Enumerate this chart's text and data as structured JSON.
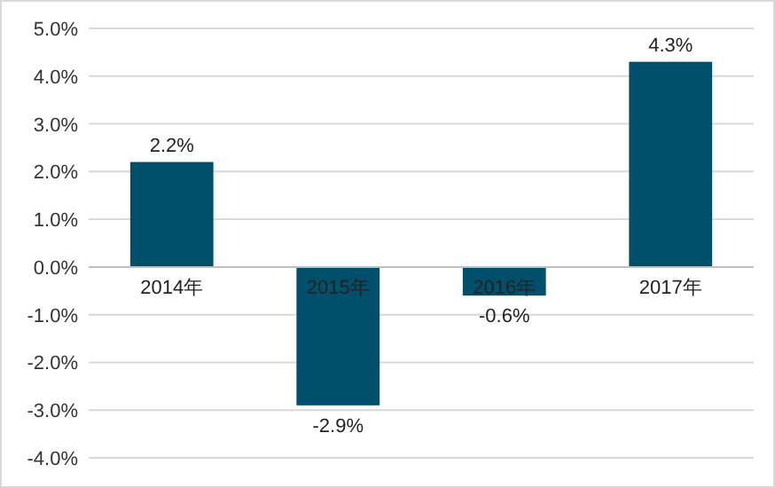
{
  "chart_data": {
    "type": "bar",
    "categories": [
      "2014年",
      "2015年",
      "2016年",
      "2017年"
    ],
    "values": [
      2.2,
      -2.9,
      -0.6,
      4.3
    ],
    "value_labels": [
      "2.2%",
      "-2.9%",
      "-0.6%",
      "4.3%"
    ],
    "color": "#004f6b",
    "ylim": [
      -4,
      5
    ],
    "yticks": [
      {
        "value": -4,
        "label": "-4.0%"
      },
      {
        "value": -3,
        "label": "-3.0%"
      },
      {
        "value": -2,
        "label": "-2.0%"
      },
      {
        "value": -1,
        "label": "-1.0%"
      },
      {
        "value": 0,
        "label": "0.0%"
      },
      {
        "value": 1,
        "label": "1.0%"
      },
      {
        "value": 2,
        "label": "2.0%"
      },
      {
        "value": 3,
        "label": "3.0%"
      },
      {
        "value": 4,
        "label": "4.0%"
      },
      {
        "value": 5,
        "label": "5.0%"
      }
    ],
    "grid": "y"
  }
}
